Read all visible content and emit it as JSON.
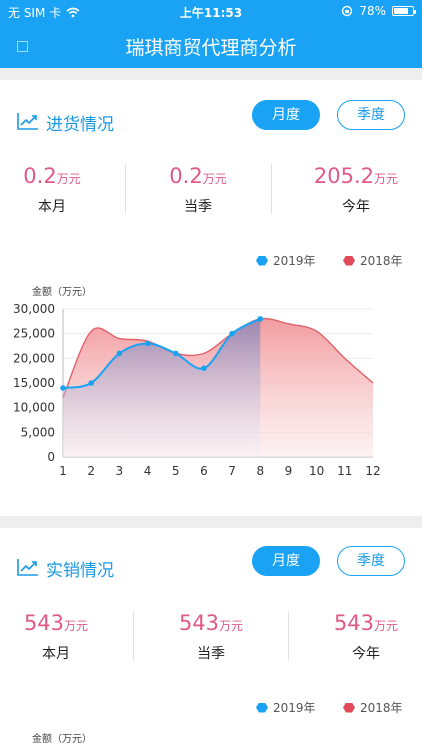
{
  "status_bar": {
    "carrier": "无 SIM 卡",
    "time": "上午11:53",
    "battery": "78%",
    "battery_level": 0.78
  },
  "nav": {
    "title": "瑞琪商贸代理商分析"
  },
  "purchase": {
    "title": "进货情况",
    "tabs": [
      {
        "label": "月度",
        "active": true
      },
      {
        "label": "季度",
        "active": false
      }
    ],
    "stats": [
      {
        "value": "0.2",
        "unit": "万元",
        "caption": "本月"
      },
      {
        "value": "0.2",
        "unit": "万元",
        "caption": "当季"
      },
      {
        "value": "205.2",
        "unit": "万元",
        "caption": "今年"
      }
    ],
    "legend": [
      {
        "name": "2019年",
        "color": "#1aa3f4"
      },
      {
        "name": "2018年",
        "color": "#e04a58"
      }
    ],
    "ylabel": "金额（万元）"
  },
  "sales": {
    "title": "实销情况",
    "tabs": [
      {
        "label": "月度",
        "active": true
      },
      {
        "label": "季度",
        "active": false
      }
    ],
    "stats": [
      {
        "value": "543",
        "unit": "万元",
        "caption": "本月"
      },
      {
        "value": "543",
        "unit": "万元",
        "caption": "当季"
      },
      {
        "value": "543",
        "unit": "万元",
        "caption": "今年"
      }
    ],
    "legend": [
      {
        "name": "2019年",
        "color": "#1aa3f4"
      },
      {
        "name": "2018年",
        "color": "#e04a58"
      }
    ],
    "ylabel": "金额（万元）"
  },
  "chart_data": {
    "type": "area",
    "x": [
      1,
      2,
      3,
      4,
      5,
      6,
      7,
      8,
      9,
      10,
      11,
      12
    ],
    "xtick_labels": [
      "1",
      "2",
      "3",
      "4",
      "5",
      "6",
      "7",
      "8",
      "9",
      "10",
      "11",
      "12"
    ],
    "ytick_labels": [
      "0",
      "5,000",
      "10,000",
      "15,000",
      "20,000",
      "25,000",
      "30,000"
    ],
    "yticks": [
      0,
      5000,
      10000,
      15000,
      20000,
      25000,
      30000
    ],
    "ylim": [
      0,
      30000
    ],
    "ylabel": "金额（万元）",
    "legend_position": "top-right",
    "series": [
      {
        "name": "2019年",
        "color": "#1aa3f4",
        "x": [
          1,
          2,
          3,
          4,
          5,
          6,
          7,
          8
        ],
        "values": [
          14000,
          15000,
          21000,
          23000,
          21000,
          18000,
          25000,
          28000
        ]
      },
      {
        "name": "2018年",
        "color": "#e04a58",
        "x": [
          1,
          2,
          3,
          4,
          5,
          6,
          7,
          8,
          9,
          10,
          11,
          12
        ],
        "values": [
          12000,
          25500,
          24000,
          23500,
          21000,
          21000,
          25000,
          28000,
          27000,
          25500,
          20000,
          15000
        ]
      }
    ]
  }
}
